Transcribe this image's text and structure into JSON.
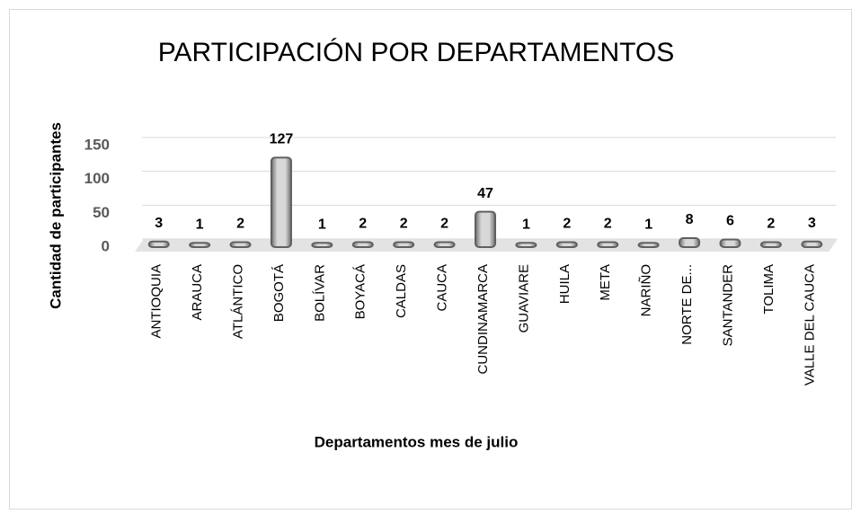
{
  "chart_data": {
    "type": "bar",
    "title": "PARTICIPACIÓN POR DEPARTAMENTOS",
    "x_label": "Departamentos mes de julio",
    "y_label": "Cantidad de participantes",
    "categories": [
      "ANTIOQUIA",
      "ARAUCA",
      "ATLÁNTICO",
      "BOGOTÁ",
      "BOLÍVAR",
      "BOYACÁ",
      "CALDAS",
      "CAUCA",
      "CUNDINAMARCA",
      "GUAVIARE",
      "HUILA",
      "META",
      "NARIÑO",
      "NORTE DE...",
      "SANTANDER",
      "TOLIMA",
      "VALLE DEL CAUCA"
    ],
    "values": [
      3,
      1,
      2,
      127,
      1,
      2,
      2,
      2,
      47,
      1,
      2,
      2,
      1,
      8,
      6,
      2,
      3
    ],
    "color": "#808080",
    "ylim": [
      0,
      150
    ],
    "yticks": [
      0,
      50,
      100,
      150
    ],
    "grid": true
  }
}
